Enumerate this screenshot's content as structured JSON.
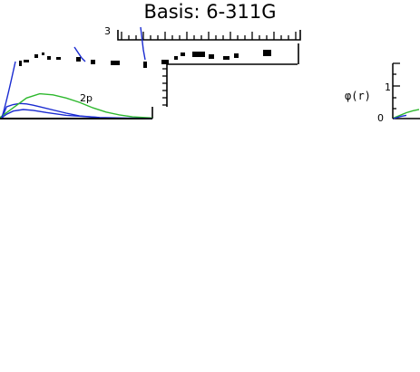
{
  "chart_data": {
    "type": "line",
    "title": "Basis: 6-311G",
    "ylabel": "φ(r)",
    "annotations": [
      "2p"
    ],
    "left_panel": {
      "ytick_labels": [
        "3"
      ],
      "series": [
        {
          "color": "#1a2bd1",
          "x": [
            0.05,
            0.1,
            0.2,
            0.3,
            0.4,
            0.5,
            0.6,
            0.8,
            1.0,
            1.2,
            1.5
          ],
          "y": [
            0.18,
            0.55,
            0.65,
            0.7,
            0.68,
            0.62,
            0.55,
            0.4,
            0.25,
            0.12,
            0.05
          ]
        },
        {
          "color": "#2eb82e",
          "x": [
            0.0,
            0.2,
            0.4,
            0.6,
            0.8,
            1.0,
            1.2,
            1.4,
            1.6,
            1.8,
            2.0,
            2.3
          ],
          "y": [
            0.05,
            0.5,
            0.95,
            1.15,
            1.1,
            0.95,
            0.75,
            0.5,
            0.3,
            0.17,
            0.08,
            0.03
          ]
        },
        {
          "color": "#1a2bd1",
          "x": [
            0.0,
            0.1,
            0.2,
            0.35,
            0.5,
            0.7,
            1.0,
            1.5,
            2.3
          ],
          "y": [
            -0.02,
            0.2,
            0.35,
            0.42,
            0.38,
            0.28,
            0.15,
            0.05,
            0.0
          ]
        },
        {
          "color": "#000000",
          "x": [
            0.0,
            2.3
          ],
          "y": [
            0.0,
            0.0
          ]
        }
      ]
    },
    "right_panel": {
      "ytick_labels": [
        "0",
        "1"
      ],
      "series": [
        {
          "color": "#2eb82e",
          "x": [
            0.0,
            0.2,
            0.4,
            0.6,
            0.8
          ],
          "y": [
            0.02,
            0.1,
            0.18,
            0.24,
            0.28
          ]
        },
        {
          "color": "#1a2bd1",
          "x": [
            0.0,
            0.2,
            0.4
          ],
          "y": [
            0.0,
            0.06,
            0.1
          ]
        }
      ]
    }
  }
}
